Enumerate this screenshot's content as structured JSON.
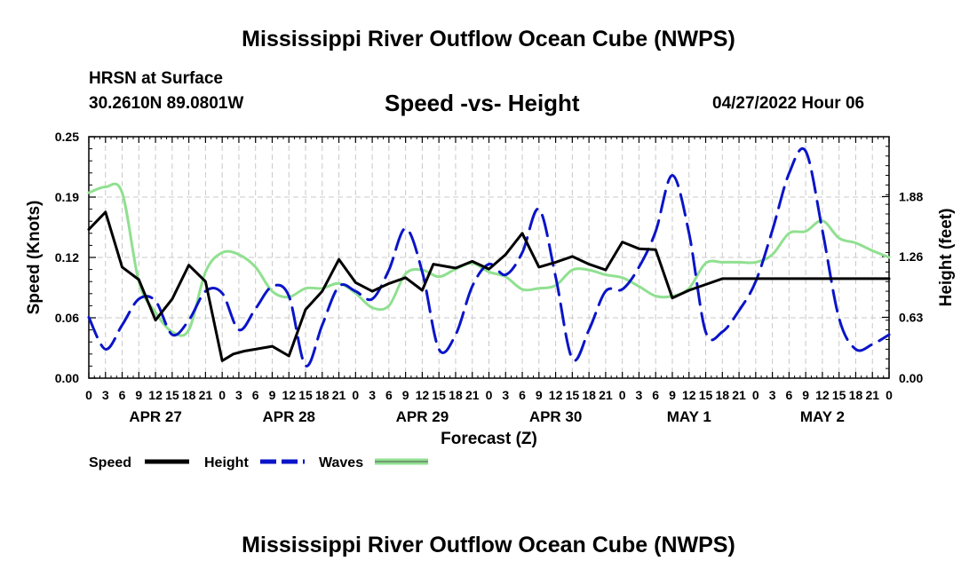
{
  "header": {
    "title": "Mississippi River Outflow Ocean Cube (NWPS)",
    "station": "HRSN at Surface",
    "coords": "30.2610N  89.0801W",
    "subtitle": "Speed -vs- Height",
    "datetime": "04/27/2022 Hour 06"
  },
  "footer": {
    "title": "Mississippi River Outflow Ocean Cube (NWPS)"
  },
  "chart_data": {
    "type": "line",
    "title": "Speed -vs- Height",
    "xlabel": "Forecast (Z)",
    "ylabel_left": "Speed (Knots)",
    "ylabel_right": "Height (feet)",
    "ylim_left": [
      0,
      0.25
    ],
    "ylim_right": [
      0,
      2.5
    ],
    "xlim_hours": [
      0,
      144
    ],
    "grid": true,
    "left_ticks": [
      "0.00",
      "0.06",
      "0.12",
      "0.19",
      "0.25"
    ],
    "left_tick_values": [
      0,
      0.0625,
      0.125,
      0.1875,
      0.25
    ],
    "right_ticks": [
      "0.00",
      "0.63",
      "1.26",
      "1.88"
    ],
    "right_tick_values": [
      0,
      0.63,
      1.26,
      1.88
    ],
    "x_tick_labels": [
      "0",
      "3",
      "6",
      "9",
      "12",
      "15",
      "18",
      "21",
      "0",
      "3",
      "6",
      "9",
      "12",
      "15",
      "18",
      "21",
      "0",
      "3",
      "6",
      "9",
      "12",
      "15",
      "18",
      "21",
      "0",
      "3",
      "6",
      "9",
      "12",
      "15",
      "18",
      "21",
      "0",
      "3",
      "6",
      "9",
      "12",
      "15",
      "18",
      "21",
      "0",
      "3",
      "6",
      "9",
      "12",
      "15",
      "18",
      "21",
      "0"
    ],
    "day_labels": [
      {
        "label": "APR 27",
        "hour": 12
      },
      {
        "label": "APR 28",
        "hour": 36
      },
      {
        "label": "APR 29",
        "hour": 60
      },
      {
        "label": "APR 30",
        "hour": 84
      },
      {
        "label": "MAY 1",
        "hour": 108
      },
      {
        "label": "MAY 2",
        "hour": 132
      }
    ],
    "series": [
      {
        "name": "Speed",
        "axis": "left",
        "color": "#000000",
        "style": "solid",
        "points": [
          [
            0,
            0.154
          ],
          [
            3,
            0.172
          ],
          [
            6,
            0.115
          ],
          [
            9,
            0.102
          ],
          [
            12,
            0.06
          ],
          [
            15,
            0.082
          ],
          [
            18,
            0.117
          ],
          [
            21,
            0.1
          ],
          [
            24,
            0.018
          ],
          [
            26,
            0.025
          ],
          [
            28,
            0.028
          ],
          [
            30,
            0.03
          ],
          [
            33,
            0.033
          ],
          [
            36,
            0.023
          ],
          [
            39,
            0.071
          ],
          [
            42,
            0.09
          ],
          [
            45,
            0.123
          ],
          [
            48,
            0.099
          ],
          [
            51,
            0.09
          ],
          [
            54,
            0.098
          ],
          [
            57,
            0.104
          ],
          [
            60,
            0.091
          ],
          [
            62,
            0.118
          ],
          [
            66,
            0.114
          ],
          [
            69,
            0.121
          ],
          [
            72,
            0.113
          ],
          [
            75,
            0.128
          ],
          [
            78,
            0.15
          ],
          [
            81,
            0.115
          ],
          [
            84,
            0.12
          ],
          [
            87,
            0.126
          ],
          [
            90,
            0.118
          ],
          [
            93,
            0.112
          ],
          [
            96,
            0.141
          ],
          [
            99,
            0.134
          ],
          [
            102,
            0.133
          ],
          [
            105,
            0.083
          ],
          [
            108,
            0.091
          ],
          [
            111,
            0.097
          ],
          [
            114,
            0.103
          ],
          [
            144,
            0.103
          ]
        ]
      },
      {
        "name": "Height",
        "axis": "right",
        "color": "#0a14c8",
        "style": "dashed",
        "points": [
          [
            0,
            0.63
          ],
          [
            3,
            0.3
          ],
          [
            6,
            0.55
          ],
          [
            9,
            0.82
          ],
          [
            12,
            0.8
          ],
          [
            15,
            0.45
          ],
          [
            18,
            0.6
          ],
          [
            21,
            0.9
          ],
          [
            24,
            0.88
          ],
          [
            27,
            0.5
          ],
          [
            30,
            0.72
          ],
          [
            33,
            0.95
          ],
          [
            36,
            0.85
          ],
          [
            39,
            0.13
          ],
          [
            42,
            0.55
          ],
          [
            45,
            0.95
          ],
          [
            48,
            0.9
          ],
          [
            51,
            0.82
          ],
          [
            54,
            1.12
          ],
          [
            57,
            1.55
          ],
          [
            60,
            1.1
          ],
          [
            63,
            0.3
          ],
          [
            66,
            0.45
          ],
          [
            69,
            0.95
          ],
          [
            72,
            1.18
          ],
          [
            75,
            1.07
          ],
          [
            78,
            1.3
          ],
          [
            81,
            1.75
          ],
          [
            84,
            1.05
          ],
          [
            87,
            0.2
          ],
          [
            90,
            0.5
          ],
          [
            93,
            0.9
          ],
          [
            96,
            0.92
          ],
          [
            99,
            1.15
          ],
          [
            102,
            1.52
          ],
          [
            105,
            2.1
          ],
          [
            108,
            1.5
          ],
          [
            111,
            0.48
          ],
          [
            114,
            0.48
          ],
          [
            117,
            0.7
          ],
          [
            120,
            1.0
          ],
          [
            123,
            1.53
          ],
          [
            126,
            2.12
          ],
          [
            129,
            2.35
          ],
          [
            132,
            1.53
          ],
          [
            135,
            0.62
          ],
          [
            138,
            0.3
          ],
          [
            141,
            0.35
          ],
          [
            144,
            0.45
          ]
        ]
      },
      {
        "name": "Waves",
        "axis": "right",
        "color": "#90e090",
        "style": "solid",
        "points": [
          [
            0,
            1.92
          ],
          [
            3,
            1.98
          ],
          [
            6,
            1.92
          ],
          [
            9,
            1.0
          ],
          [
            12,
            0.68
          ],
          [
            15,
            0.48
          ],
          [
            18,
            0.5
          ],
          [
            21,
            1.1
          ],
          [
            24,
            1.3
          ],
          [
            27,
            1.28
          ],
          [
            30,
            1.15
          ],
          [
            33,
            0.9
          ],
          [
            36,
            0.84
          ],
          [
            39,
            0.93
          ],
          [
            42,
            0.93
          ],
          [
            45,
            0.98
          ],
          [
            48,
            0.88
          ],
          [
            51,
            0.73
          ],
          [
            54,
            0.75
          ],
          [
            57,
            1.08
          ],
          [
            60,
            1.12
          ],
          [
            63,
            1.05
          ],
          [
            66,
            1.13
          ],
          [
            69,
            1.19
          ],
          [
            72,
            1.1
          ],
          [
            75,
            1.05
          ],
          [
            78,
            0.92
          ],
          [
            81,
            0.93
          ],
          [
            84,
            0.96
          ],
          [
            87,
            1.12
          ],
          [
            90,
            1.12
          ],
          [
            93,
            1.07
          ],
          [
            96,
            1.04
          ],
          [
            99,
            0.95
          ],
          [
            102,
            0.85
          ],
          [
            105,
            0.85
          ],
          [
            108,
            0.93
          ],
          [
            111,
            1.19
          ],
          [
            114,
            1.2
          ],
          [
            117,
            1.2
          ],
          [
            120,
            1.2
          ],
          [
            123,
            1.28
          ],
          [
            126,
            1.5
          ],
          [
            129,
            1.52
          ],
          [
            132,
            1.63
          ],
          [
            135,
            1.45
          ],
          [
            138,
            1.4
          ],
          [
            141,
            1.32
          ],
          [
            144,
            1.25
          ]
        ]
      }
    ],
    "legend": [
      {
        "label": "Speed",
        "color": "#000000",
        "style": "solid"
      },
      {
        "label": "Height",
        "color": "#0a14c8",
        "style": "dashed"
      },
      {
        "label": "Waves",
        "color": "#90e090",
        "style": "solid"
      }
    ]
  }
}
